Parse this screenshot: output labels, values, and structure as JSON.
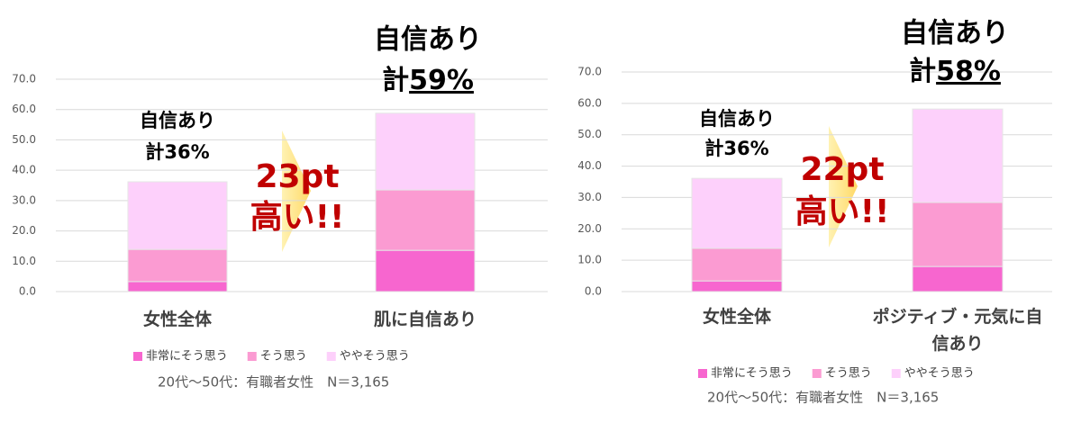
{
  "chart_data": [
    {
      "type": "stacked_bar",
      "categories": [
        "女性全体",
        "肌に自信あり"
      ],
      "series": [
        {
          "name": "非常にそう思う",
          "color": "#f766cf",
          "values": [
            3.3,
            13.6
          ]
        },
        {
          "name": "そう思う",
          "color": "#fb9bd2",
          "values": [
            10.6,
            19.9
          ]
        },
        {
          "name": "ややそう思う",
          "color": "#fdd0fb",
          "values": [
            22.3,
            25.3
          ]
        }
      ],
      "ylim": [
        0,
        70
      ],
      "yticks": [
        {
          "value": 0,
          "label": "0.0"
        },
        {
          "value": 10,
          "label": "10.0"
        },
        {
          "value": 20,
          "label": "20.0"
        },
        {
          "value": 30,
          "label": "30.0"
        },
        {
          "value": 40,
          "label": "40.0"
        },
        {
          "value": 50,
          "label": "50.0"
        },
        {
          "value": 60,
          "label": "60.0"
        },
        {
          "value": 70,
          "label": "70.0"
        }
      ],
      "grid": true,
      "annotations": [
        "自信あり",
        "計36%",
        "自信あり",
        "計",
        "59%",
        "23pt",
        "高い!!"
      ],
      "footnote": "20代～50代：有職者女性　N＝3,165"
    },
    {
      "type": "stacked_bar",
      "categories": [
        "女性全体",
        "ポジティブ・元気に自信あり"
      ],
      "series": [
        {
          "name": "非常にそう思う",
          "color": "#f766cf",
          "values": [
            3.4,
            8.0
          ]
        },
        {
          "name": "そう思う",
          "color": "#fb9bd2",
          "values": [
            10.4,
            20.4
          ]
        },
        {
          "name": "ややそう思う",
          "color": "#fdd0fb",
          "values": [
            22.3,
            29.8
          ]
        }
      ],
      "ylim": [
        0,
        70
      ],
      "yticks": [
        {
          "value": 0,
          "label": "0.0"
        },
        {
          "value": 10,
          "label": "10.0"
        },
        {
          "value": 20,
          "label": "20.0"
        },
        {
          "value": 30,
          "label": "30.0"
        },
        {
          "value": 40,
          "label": "40.0"
        },
        {
          "value": 50,
          "label": "50.0"
        },
        {
          "value": 60,
          "label": "60.0"
        },
        {
          "value": 70,
          "label": "70.0"
        }
      ],
      "grid": true,
      "annotations": [
        "自信あり",
        "計36%",
        "自信あり",
        "計",
        "58%",
        "22pt",
        "高い!!"
      ],
      "footnote": "20代～50代：有職者女性　N＝3,165"
    }
  ]
}
